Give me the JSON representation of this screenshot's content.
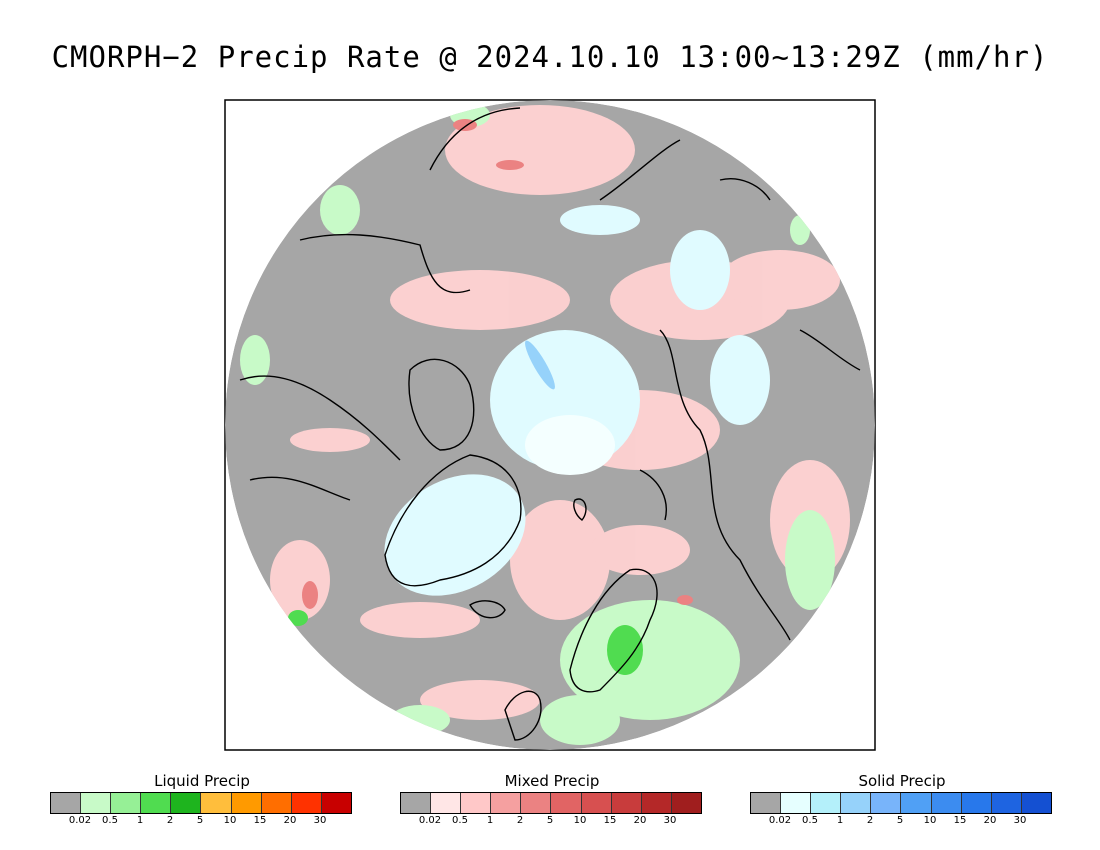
{
  "title": "CMORPH−2 Precip Rate @ 2024.10.10 13:00~13:29Z (mm/hr)",
  "colors": {
    "no_precip": "#a6a6a6",
    "frame": "#000000"
  },
  "legends": [
    {
      "title": "Liquid Precip",
      "colors": [
        "#a6a6a6",
        "#c8fac8",
        "#96f096",
        "#50dc50",
        "#1eb41e",
        "#ffbe3c",
        "#ff9a00",
        "#ff6e00",
        "#ff3200",
        "#c80000"
      ],
      "ticks": [
        "0.02",
        "0.5",
        "1",
        "2",
        "5",
        "10",
        "15",
        "20",
        "30"
      ]
    },
    {
      "title": "Mixed Precip",
      "colors": [
        "#a6a6a6",
        "#ffe6e6",
        "#ffc8c8",
        "#f5a0a0",
        "#eb8282",
        "#e16464",
        "#d75050",
        "#c83c3c",
        "#b42828",
        "#a01e1e"
      ],
      "ticks": [
        "0.02",
        "0.5",
        "1",
        "2",
        "5",
        "10",
        "15",
        "20",
        "30"
      ]
    },
    {
      "title": "Solid Precip",
      "colors": [
        "#a6a6a6",
        "#e6ffff",
        "#b4f0fa",
        "#96d2fa",
        "#78b4fa",
        "#50a0f5",
        "#3c8cf0",
        "#2878eb",
        "#1e64e1",
        "#1450d2"
      ],
      "ticks": [
        "0.02",
        "0.5",
        "1",
        "2",
        "5",
        "10",
        "15",
        "20",
        "30"
      ]
    }
  ]
}
